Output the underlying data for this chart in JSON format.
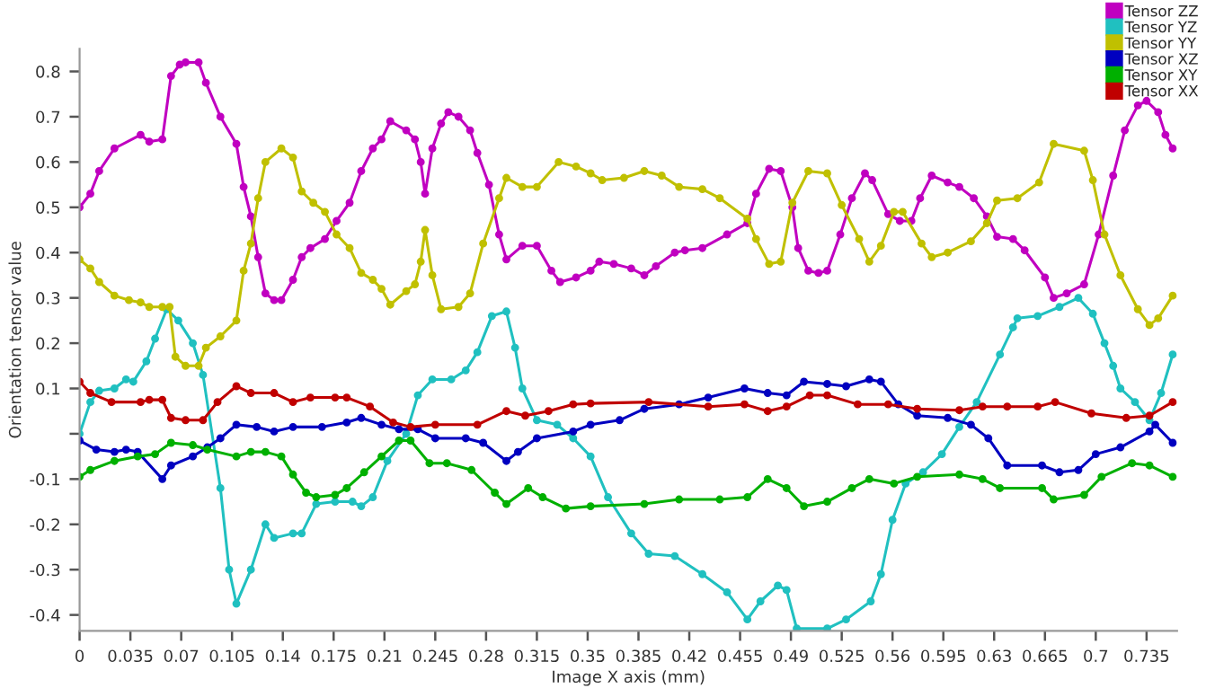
{
  "chart_data": {
    "type": "line",
    "xlabel": "Image X axis (mm)",
    "ylabel": "Orientation tensor value",
    "xlim": [
      0,
      0.756
    ],
    "ylim": [
      -0.435,
      0.85
    ],
    "xticks": [
      0,
      0.035,
      0.07,
      0.105,
      0.14,
      0.175,
      0.21,
      0.245,
      0.28,
      0.315,
      0.35,
      0.385,
      0.42,
      0.455,
      0.49,
      0.525,
      0.56,
      0.595,
      0.63,
      0.665,
      0.7,
      0.735
    ],
    "yticks": [
      -0.4,
      -0.3,
      -0.2,
      -0.1,
      {
        "value": 0,
        "label": null
      },
      0.1,
      0.2,
      0.3,
      0.4,
      0.5,
      0.6,
      0.7,
      0.8
    ],
    "grid": false,
    "legend": "top right",
    "marker": "circle",
    "line_style": "solid",
    "series": [
      {
        "name": "Tensor ZZ",
        "color": "#c000c0",
        "x": [
          0,
          0.0074,
          0.0135,
          0.024,
          0.042,
          0.048,
          0.057,
          0.063,
          0.069,
          0.073,
          0.082,
          0.087,
          0.097,
          0.108,
          0.113,
          0.118,
          0.123,
          0.128,
          0.134,
          0.139,
          0.147,
          0.153,
          0.159,
          0.169,
          0.177,
          0.186,
          0.194,
          0.202,
          0.208,
          0.214,
          0.225,
          0.231,
          0.235,
          0.238,
          0.243,
          0.249,
          0.254,
          0.261,
          0.269,
          0.274,
          0.282,
          0.289,
          0.294,
          0.305,
          0.315,
          0.325,
          0.331,
          0.342,
          0.352,
          0.358,
          0.368,
          0.38,
          0.389,
          0.397,
          0.41,
          0.417,
          0.429,
          0.446,
          0.46,
          0.466,
          0.475,
          0.483,
          0.491,
          0.495,
          0.502,
          0.509,
          0.515,
          0.524,
          0.532,
          0.541,
          0.546,
          0.557,
          0.565,
          0.573,
          0.579,
          0.587,
          0.598,
          0.606,
          0.616,
          0.625,
          0.632,
          0.643,
          0.651,
          0.665,
          0.671,
          0.68,
          0.692,
          0.702,
          0.712,
          0.72,
          0.729,
          0.735,
          0.743,
          0.748,
          0.753
        ],
        "values": [
          0.5,
          0.53,
          0.58,
          0.63,
          0.66,
          0.645,
          0.65,
          0.79,
          0.815,
          0.82,
          0.82,
          0.775,
          0.7,
          0.64,
          0.545,
          0.48,
          0.39,
          0.31,
          0.295,
          0.295,
          0.34,
          0.39,
          0.41,
          0.43,
          0.47,
          0.51,
          0.58,
          0.63,
          0.65,
          0.69,
          0.67,
          0.65,
          0.6,
          0.53,
          0.63,
          0.685,
          0.71,
          0.7,
          0.67,
          0.62,
          0.55,
          0.44,
          0.385,
          0.415,
          0.415,
          0.36,
          0.335,
          0.345,
          0.36,
          0.38,
          0.375,
          0.365,
          0.35,
          0.37,
          0.4,
          0.405,
          0.41,
          0.44,
          0.465,
          0.53,
          0.585,
          0.58,
          0.5,
          0.41,
          0.36,
          0.355,
          0.36,
          0.44,
          0.52,
          0.575,
          0.56,
          0.485,
          0.47,
          0.47,
          0.52,
          0.57,
          0.555,
          0.545,
          0.52,
          0.48,
          0.435,
          0.43,
          0.405,
          0.345,
          0.3,
          0.31,
          0.33,
          0.44,
          0.57,
          0.67,
          0.725,
          0.735,
          0.71,
          0.66,
          0.63
        ]
      },
      {
        "name": "Tensor YZ",
        "color": "#20c0c0",
        "x": [
          0,
          0.0074,
          0.0135,
          0.024,
          0.032,
          0.037,
          0.046,
          0.052,
          0.06,
          0.068,
          0.078,
          0.085,
          0.097,
          0.103,
          0.108,
          0.118,
          0.128,
          0.134,
          0.147,
          0.153,
          0.163,
          0.176,
          0.188,
          0.194,
          0.202,
          0.212,
          0.225,
          0.233,
          0.243,
          0.256,
          0.266,
          0.274,
          0.284,
          0.294,
          0.3,
          0.305,
          0.315,
          0.329,
          0.34,
          0.352,
          0.364,
          0.38,
          0.392,
          0.41,
          0.429,
          0.446,
          0.46,
          0.469,
          0.481,
          0.487,
          0.494,
          0.515,
          0.528,
          0.545,
          0.552,
          0.56,
          0.569,
          0.581,
          0.594,
          0.606,
          0.618,
          0.634,
          0.643,
          0.646,
          0.66,
          0.675,
          0.688,
          0.698,
          0.706,
          0.712,
          0.717,
          0.727,
          0.737,
          0.745,
          0.753
        ],
        "values": [
          0.0,
          0.07,
          0.095,
          0.1,
          0.12,
          0.115,
          0.16,
          0.21,
          0.275,
          0.25,
          0.2,
          0.13,
          -0.12,
          -0.3,
          -0.375,
          -0.3,
          -0.2,
          -0.23,
          -0.22,
          -0.22,
          -0.155,
          -0.15,
          -0.15,
          -0.16,
          -0.14,
          -0.06,
          0.0,
          0.085,
          0.12,
          0.12,
          0.14,
          0.18,
          0.26,
          0.27,
          0.19,
          0.1,
          0.03,
          0.02,
          -0.01,
          -0.05,
          -0.14,
          -0.22,
          -0.265,
          -0.27,
          -0.31,
          -0.35,
          -0.41,
          -0.37,
          -0.335,
          -0.345,
          -0.43,
          -0.43,
          -0.41,
          -0.37,
          -0.31,
          -0.19,
          -0.11,
          -0.085,
          -0.045,
          0.015,
          0.07,
          0.175,
          0.235,
          0.255,
          0.26,
          0.28,
          0.3,
          0.265,
          0.2,
          0.15,
          0.1,
          0.07,
          0.03,
          0.09,
          0.175
        ]
      },
      {
        "name": "Tensor YY",
        "color": "#c0c000",
        "x": [
          0,
          0.0074,
          0.0135,
          0.024,
          0.034,
          0.042,
          0.048,
          0.057,
          0.062,
          0.066,
          0.073,
          0.082,
          0.087,
          0.097,
          0.108,
          0.113,
          0.118,
          0.123,
          0.128,
          0.139,
          0.147,
          0.153,
          0.161,
          0.169,
          0.177,
          0.186,
          0.194,
          0.202,
          0.208,
          0.214,
          0.225,
          0.231,
          0.235,
          0.238,
          0.243,
          0.249,
          0.261,
          0.269,
          0.278,
          0.289,
          0.294,
          0.305,
          0.315,
          0.33,
          0.342,
          0.352,
          0.36,
          0.375,
          0.389,
          0.401,
          0.413,
          0.429,
          0.441,
          0.46,
          0.466,
          0.475,
          0.483,
          0.491,
          0.502,
          0.515,
          0.525,
          0.537,
          0.544,
          0.552,
          0.561,
          0.567,
          0.58,
          0.587,
          0.598,
          0.614,
          0.625,
          0.632,
          0.646,
          0.661,
          0.671,
          0.692,
          0.698,
          0.706,
          0.717,
          0.729,
          0.737,
          0.743,
          0.753
        ],
        "values": [
          0.385,
          0.365,
          0.335,
          0.305,
          0.295,
          0.29,
          0.28,
          0.28,
          0.28,
          0.17,
          0.15,
          0.15,
          0.19,
          0.215,
          0.25,
          0.36,
          0.42,
          0.52,
          0.6,
          0.63,
          0.61,
          0.535,
          0.51,
          0.49,
          0.44,
          0.41,
          0.355,
          0.34,
          0.32,
          0.285,
          0.315,
          0.33,
          0.38,
          0.45,
          0.35,
          0.275,
          0.28,
          0.31,
          0.42,
          0.52,
          0.565,
          0.545,
          0.545,
          0.6,
          0.59,
          0.575,
          0.56,
          0.565,
          0.58,
          0.57,
          0.545,
          0.54,
          0.52,
          0.475,
          0.43,
          0.375,
          0.38,
          0.51,
          0.58,
          0.575,
          0.505,
          0.43,
          0.38,
          0.415,
          0.49,
          0.49,
          0.42,
          0.39,
          0.4,
          0.425,
          0.465,
          0.515,
          0.52,
          0.555,
          0.64,
          0.625,
          0.56,
          0.44,
          0.35,
          0.275,
          0.24,
          0.255,
          0.305
        ]
      },
      {
        "name": "Tensor XZ",
        "color": "#0000c0",
        "x": [
          0,
          0.0115,
          0.024,
          0.032,
          0.04,
          0.057,
          0.063,
          0.078,
          0.088,
          0.097,
          0.108,
          0.122,
          0.134,
          0.147,
          0.167,
          0.184,
          0.194,
          0.208,
          0.22,
          0.233,
          0.245,
          0.266,
          0.278,
          0.294,
          0.302,
          0.315,
          0.34,
          0.352,
          0.372,
          0.389,
          0.413,
          0.433,
          0.458,
          0.474,
          0.487,
          0.499,
          0.515,
          0.528,
          0.544,
          0.552,
          0.564,
          0.577,
          0.598,
          0.614,
          0.626,
          0.639,
          0.663,
          0.675,
          0.688,
          0.7,
          0.717,
          0.737,
          0.741,
          0.753
        ],
        "values": [
          -0.015,
          -0.035,
          -0.04,
          -0.035,
          -0.04,
          -0.1,
          -0.07,
          -0.05,
          -0.03,
          -0.01,
          0.02,
          0.015,
          0.005,
          0.015,
          0.015,
          0.025,
          0.035,
          0.02,
          0.01,
          0.01,
          -0.01,
          -0.01,
          -0.02,
          -0.06,
          -0.04,
          -0.01,
          0.005,
          0.02,
          0.03,
          0.055,
          0.065,
          0.08,
          0.1,
          0.09,
          0.085,
          0.115,
          0.11,
          0.105,
          0.12,
          0.115,
          0.065,
          0.04,
          0.035,
          0.02,
          -0.01,
          -0.07,
          -0.07,
          -0.085,
          -0.08,
          -0.045,
          -0.03,
          0.005,
          0.02,
          -0.02
        ]
      },
      {
        "name": "Tensor XY",
        "color": "#00b000",
        "x": [
          0,
          0.0074,
          0.024,
          0.04,
          0.052,
          0.063,
          0.078,
          0.088,
          0.108,
          0.118,
          0.128,
          0.139,
          0.147,
          0.156,
          0.163,
          0.176,
          0.184,
          0.196,
          0.208,
          0.22,
          0.228,
          0.241,
          0.253,
          0.27,
          0.286,
          0.294,
          0.309,
          0.319,
          0.335,
          0.352,
          0.389,
          0.413,
          0.441,
          0.46,
          0.474,
          0.487,
          0.499,
          0.515,
          0.532,
          0.544,
          0.561,
          0.577,
          0.606,
          0.622,
          0.634,
          0.663,
          0.671,
          0.692,
          0.704,
          0.725,
          0.737,
          0.753
        ],
        "values": [
          -0.095,
          -0.08,
          -0.06,
          -0.05,
          -0.045,
          -0.02,
          -0.025,
          -0.035,
          -0.05,
          -0.04,
          -0.04,
          -0.05,
          -0.09,
          -0.13,
          -0.14,
          -0.135,
          -0.12,
          -0.085,
          -0.05,
          -0.015,
          -0.015,
          -0.065,
          -0.065,
          -0.08,
          -0.13,
          -0.155,
          -0.12,
          -0.14,
          -0.165,
          -0.16,
          -0.155,
          -0.145,
          -0.145,
          -0.14,
          -0.1,
          -0.12,
          -0.16,
          -0.15,
          -0.12,
          -0.1,
          -0.11,
          -0.095,
          -0.09,
          -0.1,
          -0.12,
          -0.12,
          -0.145,
          -0.135,
          -0.095,
          -0.065,
          -0.07,
          -0.095
        ]
      },
      {
        "name": "Tensor XX",
        "color": "#c00000",
        "x": [
          0,
          0.0074,
          0.022,
          0.042,
          0.048,
          0.057,
          0.063,
          0.073,
          0.085,
          0.095,
          0.108,
          0.118,
          0.134,
          0.147,
          0.159,
          0.176,
          0.184,
          0.2,
          0.216,
          0.228,
          0.245,
          0.274,
          0.294,
          0.307,
          0.323,
          0.34,
          0.352,
          0.392,
          0.433,
          0.458,
          0.474,
          0.487,
          0.503,
          0.515,
          0.536,
          0.557,
          0.577,
          0.606,
          0.622,
          0.639,
          0.66,
          0.672,
          0.697,
          0.721,
          0.737,
          0.753
        ],
        "values": [
          0.115,
          0.09,
          0.07,
          0.07,
          0.075,
          0.075,
          0.035,
          0.03,
          0.03,
          0.07,
          0.105,
          0.09,
          0.09,
          0.07,
          0.08,
          0.08,
          0.08,
          0.06,
          0.025,
          0.015,
          0.02,
          0.02,
          0.05,
          0.04,
          0.05,
          0.065,
          0.067,
          0.07,
          0.06,
          0.065,
          0.05,
          0.06,
          0.085,
          0.085,
          0.065,
          0.065,
          0.055,
          0.052,
          0.06,
          0.06,
          0.06,
          0.07,
          0.045,
          0.035,
          0.04,
          0.07
        ]
      }
    ]
  }
}
